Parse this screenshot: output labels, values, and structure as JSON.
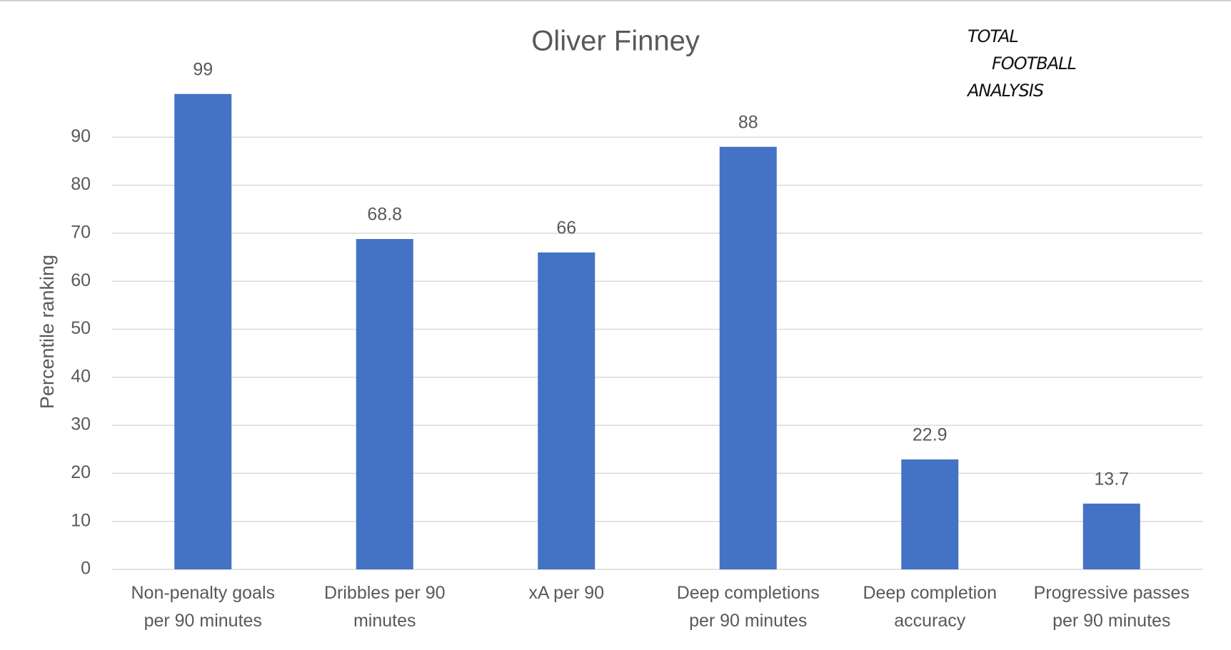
{
  "chart_data": {
    "type": "bar",
    "title": "Oliver Finney",
    "y_label": "Percentile ranking",
    "categories": [
      "Non-penalty goals per 90 minutes",
      "Dribbles per 90 minutes",
      "xA per 90",
      "Deep completions per 90 minutes",
      "Deep completion accuracy",
      "Progressive passes per 90 minutes"
    ],
    "values": [
      99,
      68.8,
      66,
      88,
      22.9,
      13.7
    ],
    "color": "#4472c4",
    "ylim": [
      0,
      100
    ],
    "yticks": [
      0,
      10,
      20,
      30,
      40,
      50,
      60,
      70,
      80,
      90
    ],
    "grid": true
  },
  "logo": [
    "TOTAL",
    "FOOTBALL",
    "ANALYSIS"
  ]
}
